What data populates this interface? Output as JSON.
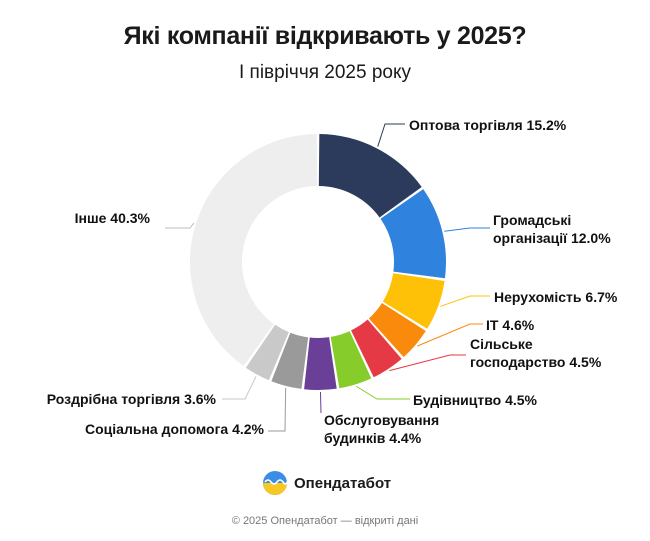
{
  "title": "Які компанії відкривають у 2025?",
  "subtitle": "І півріччя 2025 року",
  "brand": "Опендатабот",
  "footer": "© 2025 Опендатабот — відкриті дані",
  "chart_data": {
    "type": "pie",
    "variant": "donut",
    "categories": [
      "Оптова торгівля",
      "Громадські організації",
      "Нерухомість",
      "IT",
      "Сільське господарство",
      "Будівництво",
      "Обслуговування будинків",
      "Соціальна допомога",
      "Роздрібна торгівля",
      "Інше"
    ],
    "values": [
      15.2,
      12.0,
      6.7,
      4.6,
      4.5,
      4.5,
      4.4,
      4.2,
      3.6,
      40.3
    ],
    "unit": "%",
    "colors": [
      "#2c3a5c",
      "#2f82de",
      "#ffc107",
      "#f98a0b",
      "#e63946",
      "#86cc2a",
      "#6a3f98",
      "#9a9a9a",
      "#c9c9c9",
      "#eeeeee"
    ],
    "labels": [
      "Оптова торгівля 15.2%",
      [
        "Громадські",
        "організації 12.0%"
      ],
      "Нерухомість 6.7%",
      "IT 4.6%",
      [
        "Сільське",
        "господарство 4.5%"
      ],
      "Будівництво 4.5%",
      [
        "Обслуговування",
        "будинків 4.4%"
      ],
      "Соціальна допомога 4.2%",
      "Роздрібна торгівля 3.6%",
      "Інше 40.3%"
    ]
  }
}
